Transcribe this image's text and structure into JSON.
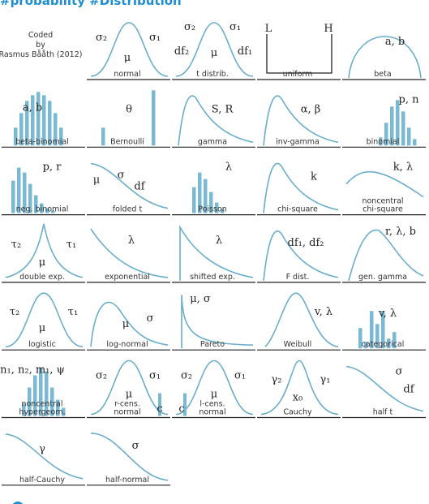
{
  "header": {
    "title": "#probability #Distribution"
  },
  "credit": [
    "Coded",
    "by",
    "Rasmus Bååth (2012)"
  ],
  "cells": [
    {
      "name": "normal",
      "params": [
        "σ₂",
        "μ",
        "σ₁"
      ]
    },
    {
      "name": "t distrib.",
      "params": [
        "σ₂",
        "σ₁",
        "df₂",
        "μ",
        "df₁"
      ]
    },
    {
      "name": "uniform",
      "params": [
        "L",
        "H"
      ]
    },
    {
      "name": "beta",
      "params": [
        "a, b"
      ]
    },
    {
      "name": "beta-binomial",
      "params": [
        "a, b"
      ]
    },
    {
      "name": "Bernoulli",
      "params": [
        "θ"
      ]
    },
    {
      "name": "gamma",
      "params": [
        "S, R"
      ]
    },
    {
      "name": "inv-gamma",
      "params": [
        "α, β"
      ]
    },
    {
      "name": "binomial",
      "params": [
        "p, n"
      ]
    },
    {
      "name": "neg. binomial",
      "params": [
        "p, r"
      ]
    },
    {
      "name": "folded t",
      "params": [
        "μ",
        "σ",
        "df"
      ]
    },
    {
      "name": "Poisson",
      "params": [
        "λ"
      ]
    },
    {
      "name": "chi-square",
      "params": [
        "k"
      ]
    },
    {
      "name": [
        "noncentral",
        "chi-square"
      ],
      "params": [
        "k, λ"
      ]
    },
    {
      "name": "double exp.",
      "params": [
        "τ₂",
        "τ₁",
        "μ"
      ]
    },
    {
      "name": "exponential",
      "params": [
        "λ"
      ]
    },
    {
      "name": "shifted exp.",
      "params": [
        "λ"
      ]
    },
    {
      "name": "F dist.",
      "params": [
        "df₁, df₂"
      ]
    },
    {
      "name": "gen. gamma",
      "params": [
        "r, λ, b"
      ]
    },
    {
      "name": "logistic",
      "params": [
        "τ₂",
        "τ₁",
        "μ"
      ]
    },
    {
      "name": "log-normal",
      "params": [
        "μ",
        "σ"
      ]
    },
    {
      "name": "Pareto",
      "params": [
        "μ, σ"
      ]
    },
    {
      "name": "Weibull",
      "params": [
        "v, λ"
      ]
    },
    {
      "name": "categorical",
      "params": [
        "v, λ"
      ]
    },
    {
      "name": [
        "noncentral",
        "hypergeom."
      ],
      "params": [
        "n₁, n₂, m₁, ψ"
      ]
    },
    {
      "name": [
        "r-cens.",
        "normal"
      ],
      "params": [
        "σ₂",
        "σ₁",
        "μ",
        "c"
      ]
    },
    {
      "name": [
        "l-cens.",
        "normal"
      ],
      "params": [
        "σ₂",
        "σ₁",
        "μ",
        "c"
      ]
    },
    {
      "name": "Cauchy",
      "params": [
        "γ₂",
        "γ₁",
        "x₀"
      ]
    },
    {
      "name": "half t",
      "params": [
        "σ",
        "df"
      ]
    },
    {
      "name": "half-Cauchy",
      "params": [
        "γ"
      ]
    },
    {
      "name": "half-normal",
      "params": [
        "σ"
      ]
    }
  ]
}
